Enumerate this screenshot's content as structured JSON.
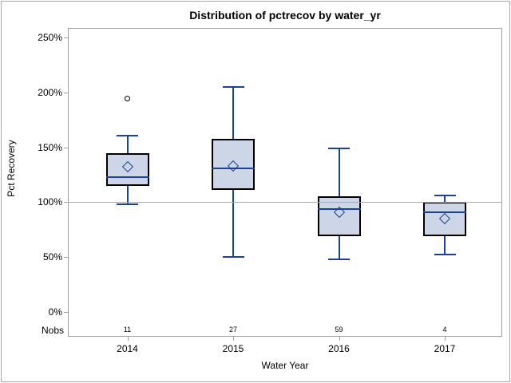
{
  "window": {
    "background": "#ffffff",
    "border_color": "#a9a9a9"
  },
  "chart_data": {
    "type": "box",
    "title": "Distribution of pctrecov by water_yr",
    "xlabel": "Water Year",
    "ylabel": "Pct Recovery",
    "nobs_label": "Nobs",
    "y_axis": {
      "min": 0,
      "max": 250,
      "tick_step": 50,
      "tick_labels": [
        "0%",
        "50%",
        "100%",
        "150%",
        "200%",
        "250%"
      ]
    },
    "reference_line_y": 100,
    "categories": [
      "2014",
      "2015",
      "2016",
      "2017"
    ],
    "nobs": [
      "11",
      "27",
      "59",
      "4"
    ],
    "series": [
      {
        "category": "2014",
        "n": 11,
        "whisker_low": 98,
        "q1": 115,
        "median": 123,
        "q3": 145,
        "whisker_high": 161,
        "mean": 132,
        "outliers": [
          195
        ]
      },
      {
        "category": "2015",
        "n": 27,
        "whisker_low": 50,
        "q1": 111,
        "median": 131,
        "q3": 158,
        "whisker_high": 205,
        "mean": 133,
        "outliers": []
      },
      {
        "category": "2016",
        "n": 59,
        "whisker_low": 48,
        "q1": 69,
        "median": 94,
        "q3": 105,
        "whisker_high": 149,
        "mean": 91,
        "outliers": []
      },
      {
        "category": "2017",
        "n": 4,
        "whisker_low": 52,
        "q1": 69,
        "median": 91,
        "q3": 100,
        "whisker_high": 106,
        "mean": 85,
        "outliers": []
      }
    ],
    "colors": {
      "box_fill": "#cdd6e6",
      "box_border": "#000000",
      "line_blue": "#1b4297",
      "axis_gray": "#a0a0a0",
      "reference_gray": "#ababab",
      "outlier": "#000000",
      "text": "#000000"
    },
    "legend": null,
    "grid": false
  }
}
